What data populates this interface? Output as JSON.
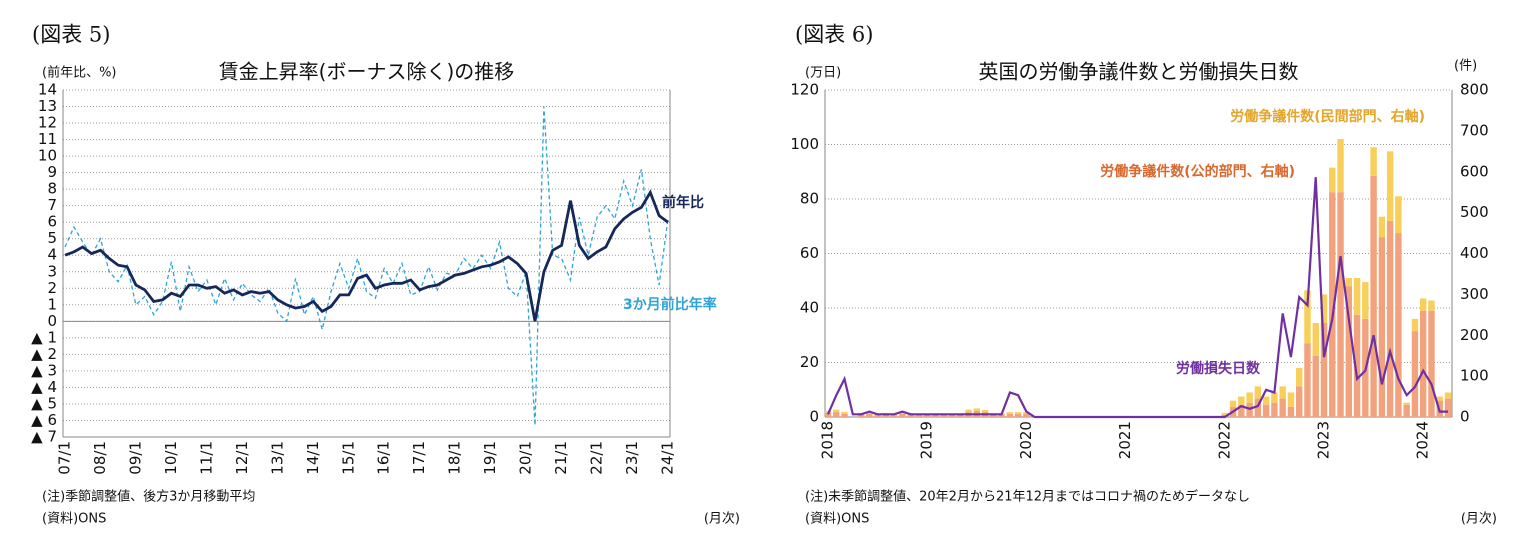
{
  "chart_data": [
    {
      "type": "line",
      "label": "(図表 5)",
      "title": "賃金上昇率(ボーナス除く)の推移",
      "y_label": "(前年比、%)",
      "notes": [
        "(注)季節調整値、後方3か月移動平均",
        "(資料)ONS"
      ],
      "x_label": "(月次)",
      "categories": [
        "07/1",
        null,
        null,
        null,
        "08/1",
        null,
        null,
        null,
        "09/1",
        null,
        null,
        null,
        "10/1",
        null,
        null,
        null,
        "11/1",
        null,
        null,
        null,
        "12/1",
        null,
        null,
        null,
        "13/1",
        null,
        null,
        null,
        "14/1",
        null,
        null,
        null,
        "15/1",
        null,
        null,
        null,
        "16/1",
        null,
        null,
        null,
        "17/1",
        null,
        null,
        null,
        "18/1",
        null,
        null,
        null,
        "19/1",
        null,
        null,
        null,
        "20/1",
        null,
        null,
        null,
        "21/1",
        null,
        null,
        null,
        "22/1",
        null,
        null,
        null,
        "23/1",
        null,
        null,
        null,
        "24/1"
      ],
      "series": [
        {
          "name": "3か月前比年率",
          "color": "#2ea3d8",
          "dashed": true,
          "values": [
            4.5,
            5.7,
            4.8,
            4.0,
            5.0,
            3.0,
            2.4,
            3.4,
            1.0,
            1.5,
            0.4,
            1.2,
            3.6,
            0.6,
            3.3,
            1.8,
            2.5,
            1.0,
            2.6,
            1.3,
            2.3,
            1.6,
            1.2,
            2.0,
            0.5,
            0.0,
            2.6,
            0.4,
            1.5,
            -0.5,
            1.8,
            3.5,
            2.0,
            3.8,
            1.8,
            1.4,
            3.2,
            2.3,
            3.5,
            1.6,
            1.8,
            3.3,
            1.9,
            2.9,
            2.8,
            3.8,
            3.2,
            4.0,
            3.2,
            4.8,
            2.0,
            1.5,
            3.0,
            -6.3,
            13.0,
            4.0,
            3.8,
            2.5,
            6.3,
            4.0,
            6.3,
            7.0,
            6.2,
            8.5,
            7.0,
            9.2,
            5.0,
            2.2,
            6.2
          ]
        },
        {
          "name": "前年比",
          "color": "#16285a",
          "dashed": false,
          "values": [
            4.0,
            4.2,
            4.5,
            4.1,
            4.3,
            3.8,
            3.4,
            3.3,
            2.2,
            1.9,
            1.2,
            1.3,
            1.7,
            1.5,
            2.2,
            2.2,
            2.0,
            2.1,
            1.7,
            1.9,
            1.6,
            1.8,
            1.7,
            1.8,
            1.3,
            1.0,
            0.8,
            0.9,
            1.2,
            0.6,
            0.9,
            1.6,
            1.6,
            2.6,
            2.8,
            2.0,
            2.2,
            2.3,
            2.3,
            2.5,
            1.9,
            2.1,
            2.2,
            2.5,
            2.8,
            2.9,
            3.1,
            3.3,
            3.4,
            3.6,
            3.9,
            3.5,
            2.9,
            0.0,
            3.0,
            4.3,
            4.6,
            7.3,
            4.6,
            3.8,
            4.2,
            4.5,
            5.6,
            6.2,
            6.6,
            6.9,
            7.8,
            6.4,
            6.0
          ]
        }
      ],
      "ylim": [
        -7,
        14
      ],
      "yticks": [
        14,
        13,
        12,
        11,
        10,
        9,
        8,
        7,
        6,
        5,
        4,
        3,
        2,
        1,
        0,
        {
          "value": -1,
          "label": "▲ 1"
        },
        {
          "value": -2,
          "label": "▲ 2"
        },
        {
          "value": -3,
          "label": "▲ 3"
        },
        {
          "value": -4,
          "label": "▲ 4"
        },
        {
          "value": -5,
          "label": "▲ 5"
        },
        {
          "value": -6,
          "label": "▲ 6"
        },
        {
          "value": -7,
          "label": "▲ 7"
        }
      ],
      "grid": true
    },
    {
      "type": "bar_line",
      "label": "(図表 6)",
      "title": "英国の労働争議件数と労働損失日数",
      "y_label": "(万日)",
      "y2_label": "(件)",
      "notes": [
        "(注)未季節調整値、20年2月から21年12月まではコロナ禍のためデータなし",
        "(資料)ONS"
      ],
      "x_label": "(月次)",
      "categories": [
        "2018",
        null,
        null,
        null,
        null,
        null,
        null,
        null,
        null,
        null,
        null,
        null,
        "2019",
        null,
        null,
        null,
        null,
        null,
        null,
        null,
        null,
        null,
        null,
        null,
        "2020",
        null,
        null,
        null,
        null,
        null,
        null,
        null,
        null,
        null,
        null,
        null,
        "2021",
        null,
        null,
        null,
        null,
        null,
        null,
        null,
        null,
        null,
        null,
        null,
        "2022",
        null,
        null,
        null,
        null,
        null,
        null,
        null,
        null,
        null,
        null,
        null,
        "2023",
        null,
        null,
        null,
        null,
        null,
        null,
        null,
        null,
        null,
        null,
        null,
        "2024",
        null,
        null,
        null
      ],
      "series": [
        {
          "name": "労働争議件数(公的部門、右軸)",
          "color": "#f2a27c",
          "text_color": "#d8682e",
          "kind": "bar",
          "axis": "y2",
          "values": [
            10,
            12,
            8,
            0,
            6,
            8,
            5,
            6,
            4,
            8,
            6,
            4,
            5,
            6,
            4,
            4,
            5,
            12,
            15,
            12,
            6,
            6,
            8,
            8,
            8,
            null,
            null,
            null,
            null,
            null,
            null,
            null,
            null,
            null,
            null,
            null,
            null,
            null,
            null,
            null,
            null,
            null,
            null,
            null,
            null,
            null,
            null,
            null,
            5,
            25,
            30,
            35,
            45,
            30,
            35,
            45,
            25,
            75,
            180,
            150,
            230,
            550,
            550,
            320,
            250,
            240,
            590,
            440,
            480,
            450,
            30,
            210,
            260,
            260,
            40,
            45
          ]
        },
        {
          "name": "労働争議件数(民間部門、右軸)",
          "color": "#f7cf5a",
          "text_color": "#e3a52a",
          "kind": "bar",
          "axis": "y2",
          "values": [
            5,
            6,
            4,
            0,
            4,
            4,
            3,
            4,
            3,
            4,
            3,
            3,
            3,
            3,
            2,
            2,
            3,
            6,
            6,
            5,
            3,
            3,
            4,
            4,
            4,
            null,
            null,
            null,
            null,
            null,
            null,
            null,
            null,
            null,
            null,
            null,
            null,
            null,
            null,
            null,
            null,
            null,
            null,
            null,
            null,
            null,
            null,
            null,
            5,
            15,
            20,
            25,
            30,
            20,
            25,
            30,
            35,
            45,
            130,
            80,
            70,
            60,
            130,
            20,
            90,
            90,
            70,
            50,
            170,
            90,
            5,
            30,
            30,
            25,
            10,
            15
          ]
        },
        {
          "name": "労働損失日数",
          "color": "#7030a0",
          "text_color": "#7030a0",
          "kind": "line",
          "values": [
            1,
            8,
            14,
            1,
            1,
            2,
            1,
            1,
            1,
            2,
            1,
            1,
            1,
            1,
            1,
            1,
            1,
            1,
            1,
            1,
            1,
            1,
            9,
            8,
            2,
            0,
            0,
            0,
            0,
            0,
            0,
            0,
            0,
            0,
            0,
            0,
            0,
            0,
            0,
            0,
            0,
            0,
            0,
            0,
            0,
            0,
            0,
            0,
            0,
            2,
            4,
            3,
            4,
            10,
            9,
            38,
            22,
            44,
            41,
            88,
            22,
            36,
            59,
            36,
            14,
            17,
            30,
            12,
            24,
            14,
            8,
            11,
            17,
            12,
            2,
            2
          ]
        }
      ],
      "ylim": [
        0,
        120
      ],
      "yticks": [
        0,
        20,
        40,
        60,
        80,
        100,
        120
      ],
      "y2lim": [
        0,
        800
      ],
      "y2ticks": [
        0,
        100,
        200,
        300,
        400,
        500,
        600,
        700,
        800
      ],
      "grid": true
    }
  ]
}
